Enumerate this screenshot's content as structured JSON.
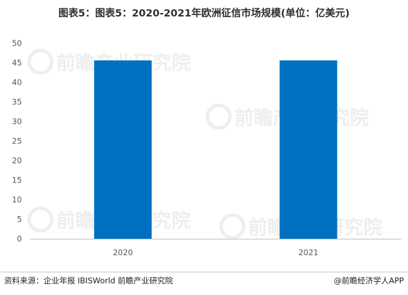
{
  "title": "图表5：图表5：2020-2021年欧洲征信市场规模(单位：亿美元)",
  "source": "资料来源：企业年报 IBISWorld 前瞻产业研究院",
  "brand": "@前瞻经济学人APP",
  "watermark": "前瞻产业研究院",
  "colors": {
    "bar": "#0070c0",
    "axis": "#bfbfbf",
    "tick_text": "#595959"
  },
  "chart_data": {
    "type": "bar",
    "categories": [
      "2020",
      "2021"
    ],
    "values": [
      45.6,
      45.6
    ],
    "ylim": [
      0,
      50
    ],
    "yticks": [
      0,
      5,
      10,
      15,
      20,
      25,
      30,
      35,
      40,
      45,
      50
    ],
    "grid": false,
    "legend": "none"
  }
}
